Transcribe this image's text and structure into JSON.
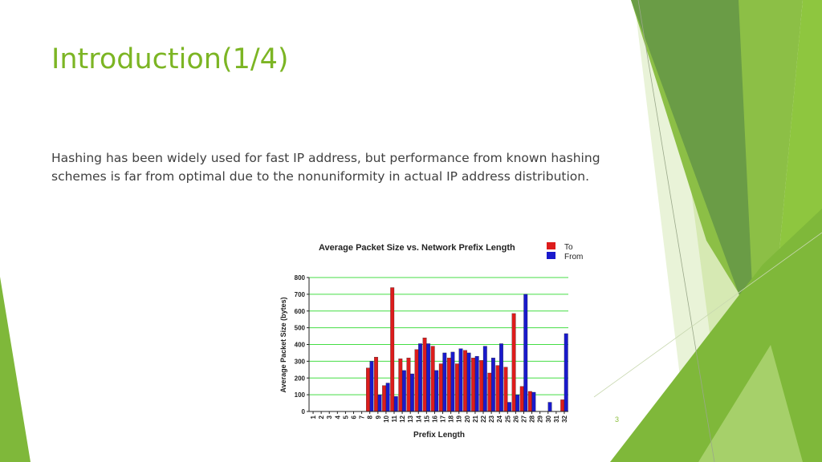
{
  "slide": {
    "title": "Introduction(1/4)",
    "body": "Hashing has been widely used for fast IP address, but performance from known hashing schemes is far from optimal due to the nonuniformity in actual IP address distribution.",
    "number": "3"
  },
  "colors": {
    "accent": "#7cb524",
    "to": "#dd1c1c",
    "from": "#1a1acc",
    "grid": "#44dd44"
  },
  "chart_data": {
    "type": "bar",
    "title": "Average Packet Size vs. Network Prefix Length",
    "xlabel": "Prefix Length",
    "ylabel": "Average Packet Size (bytes)",
    "ylim": [
      0,
      800
    ],
    "yticks": [
      0,
      100,
      200,
      300,
      400,
      500,
      600,
      700,
      800
    ],
    "grid": true,
    "legend_position": "top-right",
    "categories": [
      "1",
      "2",
      "3",
      "4",
      "5",
      "6",
      "7",
      "8",
      "9",
      "10",
      "11",
      "12",
      "13",
      "14",
      "15",
      "16",
      "17",
      "18",
      "19",
      "20",
      "21",
      "22",
      "23",
      "24",
      "25",
      "26",
      "27",
      "28",
      "29",
      "30",
      "31",
      "32"
    ],
    "series": [
      {
        "name": "To",
        "values": [
          0,
          0,
          0,
          0,
          0,
          0,
          0,
          260,
          325,
          155,
          740,
          315,
          320,
          370,
          440,
          390,
          285,
          320,
          285,
          365,
          320,
          305,
          230,
          275,
          265,
          585,
          150,
          120,
          0,
          0,
          0,
          70
        ]
      },
      {
        "name": "From",
        "values": [
          0,
          0,
          0,
          0,
          0,
          0,
          0,
          300,
          100,
          170,
          90,
          245,
          225,
          405,
          405,
          245,
          350,
          355,
          375,
          350,
          330,
          390,
          320,
          405,
          55,
          100,
          700,
          115,
          0,
          55,
          0,
          465
        ]
      }
    ]
  }
}
